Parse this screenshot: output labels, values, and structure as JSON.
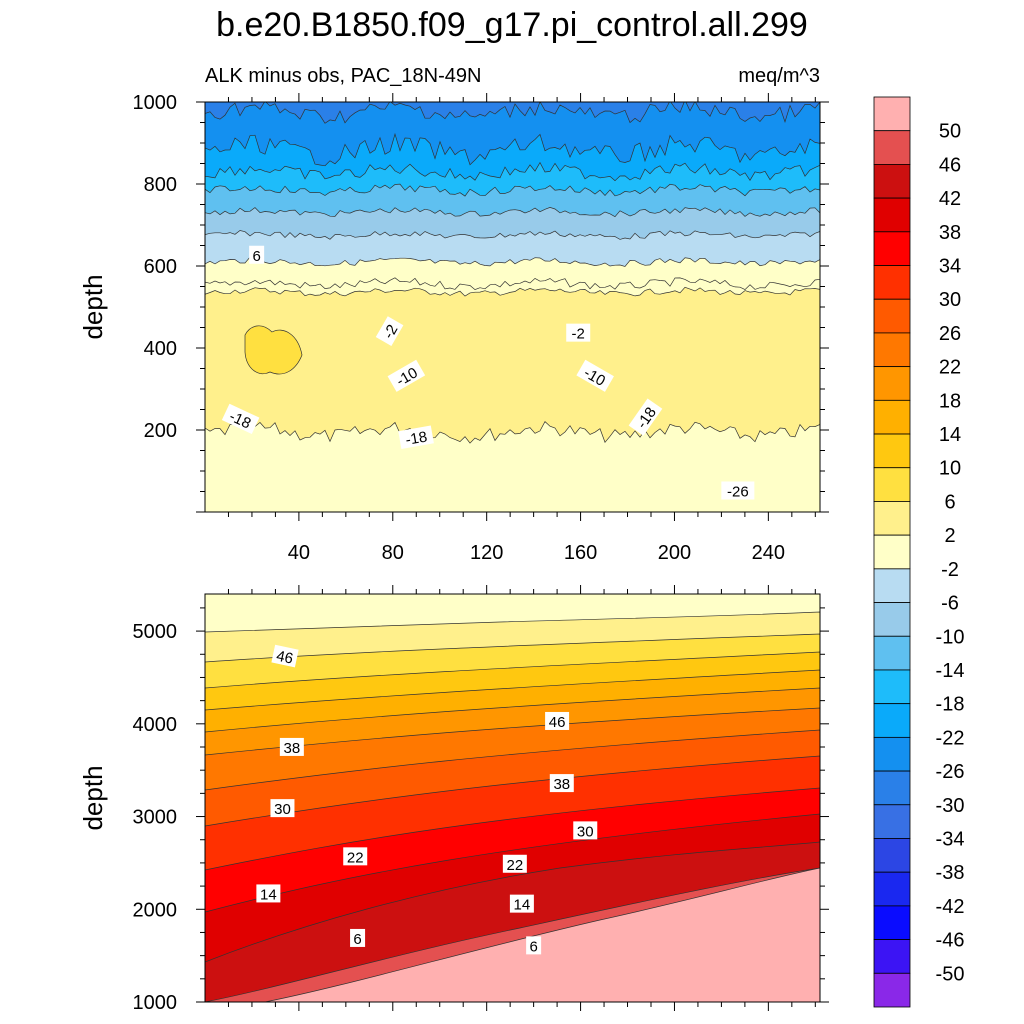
{
  "title": "b.e20.B1850.f09_g17.pi_control.all.299",
  "chart_data": [
    {
      "type": "filled-contour",
      "left_label": "ALK minus obs, PAC_18N-49N",
      "right_label": "meq/m^3",
      "ylabel": "depth",
      "xlim": [
        0,
        262
      ],
      "ylim": [
        1000,
        0
      ],
      "x_ticks": [
        40,
        80,
        120,
        160,
        200,
        240
      ],
      "y_ticks": [
        200,
        400,
        600,
        800,
        1000
      ],
      "contour_labels": [
        {
          "text": "-26",
          "x": 227,
          "y": 50,
          "rot": 0
        },
        {
          "text": "-18",
          "x": 15,
          "y": 225,
          "rot": 25
        },
        {
          "text": "-18",
          "x": 90,
          "y": 180,
          "rot": -10
        },
        {
          "text": "-18",
          "x": 188,
          "y": 230,
          "rot": -55
        },
        {
          "text": "-10",
          "x": 86,
          "y": 330,
          "rot": -30
        },
        {
          "text": "-10",
          "x": 166,
          "y": 330,
          "rot": 30
        },
        {
          "text": "-2",
          "x": 79,
          "y": 440,
          "rot": -60
        },
        {
          "text": "-2",
          "x": 159,
          "y": 435,
          "rot": 0
        },
        {
          "text": "6",
          "x": 22,
          "y": 625,
          "rot": 0
        }
      ]
    },
    {
      "type": "filled-contour",
      "ylabel": "depth",
      "xlim": [
        0,
        262
      ],
      "ylim": [
        5400,
        1000
      ],
      "y_ticks": [
        1000,
        2000,
        3000,
        4000,
        5000
      ],
      "contour_labels": [
        {
          "text": "6",
          "x": 65,
          "y": 1680,
          "rot": 0
        },
        {
          "text": "6",
          "x": 140,
          "y": 1600,
          "rot": 0
        },
        {
          "text": "14",
          "x": 27,
          "y": 2160,
          "rot": 0
        },
        {
          "text": "14",
          "x": 135,
          "y": 2050,
          "rot": 0
        },
        {
          "text": "22",
          "x": 64,
          "y": 2560,
          "rot": 0
        },
        {
          "text": "22",
          "x": 132,
          "y": 2480,
          "rot": 0
        },
        {
          "text": "30",
          "x": 33,
          "y": 3080,
          "rot": 0
        },
        {
          "text": "30",
          "x": 162,
          "y": 2840,
          "rot": 0
        },
        {
          "text": "38",
          "x": 37,
          "y": 3740,
          "rot": 0
        },
        {
          "text": "38",
          "x": 152,
          "y": 3350,
          "rot": 0
        },
        {
          "text": "46",
          "x": 34,
          "y": 4720,
          "rot": 12
        },
        {
          "text": "46",
          "x": 150,
          "y": 4020,
          "rot": 0
        }
      ]
    }
  ],
  "colorbar": {
    "labels": [
      "50",
      "46",
      "42",
      "38",
      "34",
      "30",
      "26",
      "22",
      "18",
      "14",
      "10",
      "6",
      "2",
      "-2",
      "-6",
      "-10",
      "-14",
      "-18",
      "-22",
      "-26",
      "-30",
      "-34",
      "-38",
      "-42",
      "-46",
      "-50"
    ],
    "colors": [
      "#ffb0b0",
      "#e45050",
      "#cc1010",
      "#e00000",
      "#ff0000",
      "#ff3000",
      "#ff5a00",
      "#ff7800",
      "#ff9600",
      "#ffb000",
      "#ffc810",
      "#ffe040",
      "#fff08c",
      "#ffffc8",
      "#b8dcf2",
      "#98cbea",
      "#5fc0f0",
      "#1ebcfa",
      "#0aaafa",
      "#1490f0",
      "#2a80e8",
      "#3870e4",
      "#2c46e4",
      "#1a28f0",
      "#0a0cff",
      "#3c14f4",
      "#8a28e8"
    ]
  }
}
